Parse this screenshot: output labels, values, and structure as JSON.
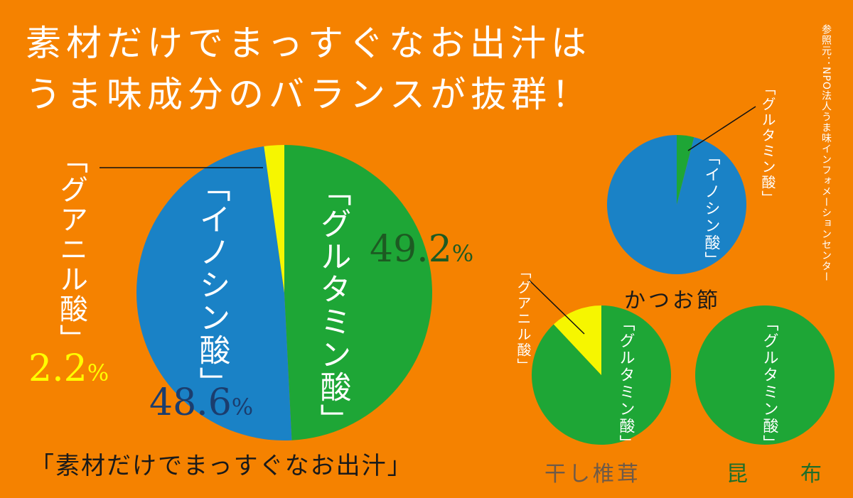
{
  "title": {
    "line1": "素材だけでまっすぐなお出汁は",
    "line2": "うま味成分のバランスが抜群！"
  },
  "source": "参照元：NPO法人うま味インフォメーションセンター",
  "caption": "「素材だけでまっすぐなお出汁」",
  "colors": {
    "background": "#F58200",
    "glutamic": "#1EA636",
    "inosinic": "#1A82C6",
    "guanylic": "#F6F600"
  },
  "chart_data": [
    {
      "type": "pie",
      "title": "",
      "categories": [
        "グルタミン酸",
        "イノシン酸",
        "グアニル酸"
      ],
      "values": [
        49.2,
        48.6,
        2.2
      ],
      "labels": [
        "「グルタミン酸」",
        "「イノシン酸」",
        "「グアニル酸」"
      ],
      "value_labels": [
        "49.2%",
        "48.6%",
        "2.2%"
      ]
    },
    {
      "type": "pie",
      "title": "かつお節",
      "categories": [
        "グルタミン酸",
        "イノシン酸"
      ],
      "values": [
        4,
        96
      ],
      "labels": [
        "「グルタミン酸」",
        "「イノシン酸」"
      ]
    },
    {
      "type": "pie",
      "title": "干し椎茸",
      "categories": [
        "グルタミン酸",
        "グアニル酸"
      ],
      "values": [
        88,
        12
      ],
      "labels": [
        "「グルタミン酸」",
        "「グアニル酸」"
      ]
    },
    {
      "type": "pie",
      "title": "昆　布",
      "categories": [
        "グルタミン酸"
      ],
      "values": [
        100
      ],
      "labels": [
        "「グルタミン酸」"
      ]
    }
  ]
}
